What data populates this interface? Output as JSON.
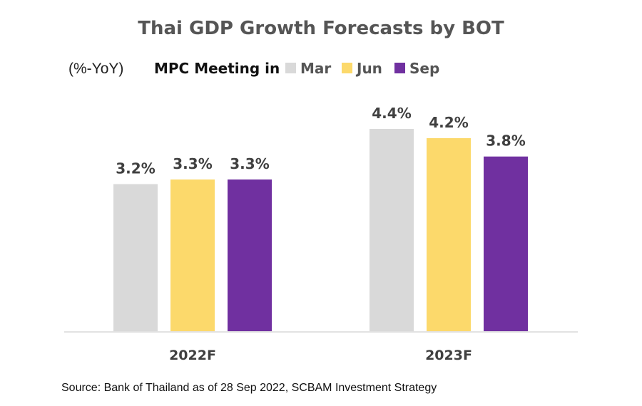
{
  "chart_data": {
    "type": "bar",
    "title": "Thai GDP Growth Forecasts by BOT",
    "unit_label": "(%-YoY)",
    "legend_title": "MPC Meeting in",
    "legend_position": "top",
    "categories": [
      "2022F",
      "2023F"
    ],
    "series": [
      {
        "name": "Mar",
        "color": "#D9D9D9",
        "values": [
          3.2,
          4.4
        ],
        "labels": [
          "3.2%",
          "4.4%"
        ]
      },
      {
        "name": "Jun",
        "color": "#FCD96B",
        "values": [
          3.3,
          4.2
        ],
        "labels": [
          "3.3%",
          "4.2%"
        ]
      },
      {
        "name": "Sep",
        "color": "#7030A0",
        "values": [
          3.3,
          3.8
        ],
        "labels": [
          "3.3%",
          "3.8%"
        ]
      }
    ],
    "ylim": [
      0,
      4.4
    ],
    "grid": false
  },
  "source": "Source: Bank of Thailand as of 28 Sep 2022, SCBAM Investment Strategy"
}
